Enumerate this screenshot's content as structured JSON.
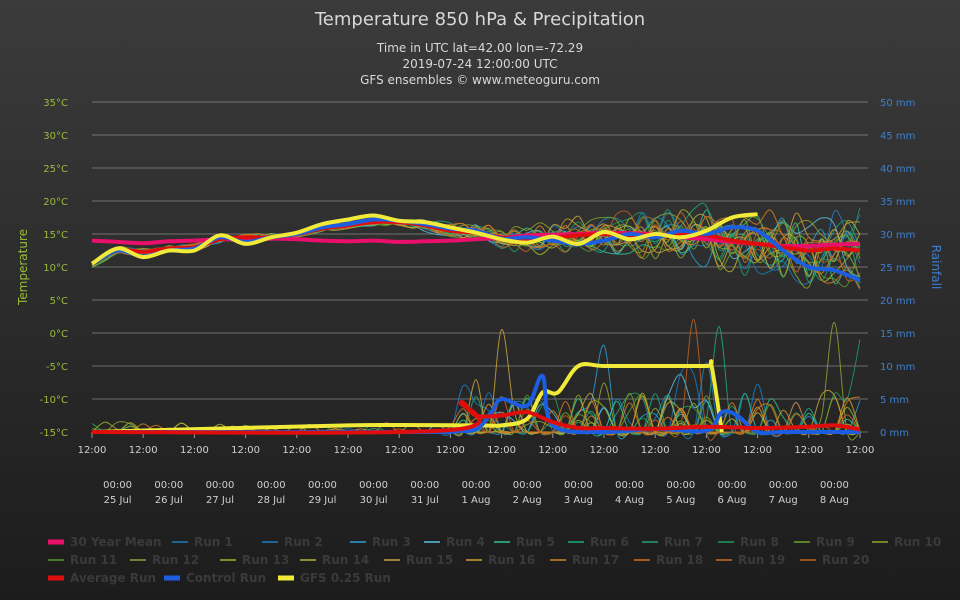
{
  "chart_data": {
    "type": "line",
    "title": "Temperature 850 hPa & Precipitation",
    "subtitle": [
      "Time in UTC lat=42.00 lon=-72.29",
      "2019-07-24 12:00:00 UTC",
      "GFS ensembles © www.meteoguru.com"
    ],
    "ylabel_left": "Temperature",
    "ylabel_right": "Rainfall",
    "ylim_left": [
      -15,
      35
    ],
    "ylim_right": [
      0,
      50
    ],
    "y_ticks_left": [
      "35°C",
      "30°C",
      "25°C",
      "20°C",
      "15°C",
      "10°C",
      "5°C",
      "0°C",
      "-5°C",
      "-10°C",
      "-15°C"
    ],
    "y_ticks_right": [
      "50 mm",
      "45 mm",
      "40 mm",
      "35 mm",
      "30 mm",
      "25 mm",
      "20 mm",
      "15 mm",
      "10 mm",
      "5 mm",
      "0 mm"
    ],
    "x_ticks_top": [
      "12:00",
      "12:00",
      "12:00",
      "12:00",
      "12:00",
      "12:00",
      "12:00",
      "12:00",
      "12:00",
      "12:00",
      "12:00",
      "12:00",
      "12:00",
      "12:00",
      "12:00",
      "12:00"
    ],
    "x_ticks_mid": [
      "00:00",
      "00:00",
      "00:00",
      "00:00",
      "00:00",
      "00:00",
      "00:00",
      "00:00",
      "00:00",
      "00:00",
      "00:00",
      "00:00",
      "00:00",
      "00:00",
      "00:00"
    ],
    "x_ticks_dates": [
      "25 Jul",
      "26 Jul",
      "27 Jul",
      "28 Jul",
      "29 Jul",
      "30 Jul",
      "31 Jul",
      "1 Aug",
      "2 Aug",
      "3 Aug",
      "4 Aug",
      "5 Aug",
      "6 Aug",
      "7 Aug",
      "8 Aug"
    ],
    "x_range_days": [
      0,
      15
    ],
    "grid": true,
    "legend_position": "bottom",
    "colors": {
      "mean30": "#e8106c",
      "control": "#1d5ee0",
      "gfs": "#f2ea38",
      "average": "#e00d0d",
      "temp_axis": "#9bbb38",
      "rain_axis": "#3d7fcf"
    },
    "legend": [
      {
        "name": "30 Year Mean",
        "color": "#e8106c",
        "thick": true
      },
      {
        "name": "Run 1",
        "color": "#1a7cbf"
      },
      {
        "name": "Run 2",
        "color": "#1f7fc2"
      },
      {
        "name": "Run 3",
        "color": "#29a0d6"
      },
      {
        "name": "Run 4",
        "color": "#5ec0e3"
      },
      {
        "name": "Run 5",
        "color": "#2fc48f"
      },
      {
        "name": "Run 6",
        "color": "#1ea886"
      },
      {
        "name": "Run 7",
        "color": "#27a06e"
      },
      {
        "name": "Run 8",
        "color": "#219b5c"
      },
      {
        "name": "Run 9",
        "color": "#6fa428"
      },
      {
        "name": "Run 10",
        "color": "#8ea62a"
      },
      {
        "name": "Run 11",
        "color": "#5a9a2c"
      },
      {
        "name": "Run 12",
        "color": "#8aa733"
      },
      {
        "name": "Run 13",
        "color": "#9fb52c"
      },
      {
        "name": "Run 14",
        "color": "#b5b43a"
      },
      {
        "name": "Run 15",
        "color": "#c9a43a"
      },
      {
        "name": "Run 16",
        "color": "#d49a2e"
      },
      {
        "name": "Run 17",
        "color": "#d9801f"
      },
      {
        "name": "Run 18",
        "color": "#d67321"
      },
      {
        "name": "Run 19",
        "color": "#c96a23"
      },
      {
        "name": "Run 20",
        "color": "#c0601f"
      },
      {
        "name": "Average Run",
        "color": "#e00d0d",
        "thick": true
      },
      {
        "name": "Control Run",
        "color": "#1d5ee0",
        "thick": true
      },
      {
        "name": "GFS 0.25 Run",
        "color": "#f2ea38",
        "thick": true
      }
    ],
    "series_temp": [
      {
        "name": "30 Year Mean",
        "x": [
          0,
          0.5,
          1,
          1.5,
          2,
          2.5,
          3,
          3.5,
          4,
          4.5,
          5,
          5.5,
          6,
          6.5,
          7,
          7.5,
          8,
          8.5,
          9,
          9.5,
          10,
          10.5,
          11,
          11.5,
          12,
          12.5,
          13,
          13.5,
          14,
          14.5,
          15
        ],
        "y": [
          14,
          13.8,
          13.6,
          13.9,
          14,
          14.2,
          14.1,
          14.3,
          14.2,
          14,
          13.9,
          14,
          13.8,
          13.9,
          14,
          14.2,
          14.4,
          14.8,
          14.9,
          15,
          15.2,
          15.1,
          15,
          14.5,
          14.2,
          13.8,
          13.5,
          13.2,
          13.2,
          13.4,
          13.5
        ]
      },
      {
        "name": "Average Run",
        "x": [
          0,
          0.5,
          1,
          1.5,
          2,
          2.5,
          3,
          3.5,
          4,
          4.5,
          5,
          5.5,
          6,
          6.5,
          7,
          7.5,
          8,
          8.5,
          9,
          9.5,
          10,
          10.5,
          11,
          11.5,
          12,
          12.5,
          13,
          13.5,
          14,
          14.5,
          15
        ],
        "y": [
          10.5,
          12.5,
          12.3,
          12.8,
          13,
          14.2,
          14.5,
          14.5,
          15,
          15.8,
          16.3,
          16.8,
          16.8,
          16.3,
          15.5,
          15.2,
          14.5,
          14.2,
          14.4,
          14.8,
          15,
          14.8,
          14.9,
          14.9,
          14.8,
          14,
          13.5,
          13,
          12.5,
          12.8,
          12.5
        ]
      },
      {
        "name": "Control Run",
        "x": [
          0,
          0.5,
          1,
          1.5,
          2,
          2.5,
          3,
          3.5,
          4,
          4.5,
          5,
          5.5,
          6,
          6.5,
          7,
          7.5,
          8,
          8.5,
          9,
          9.5,
          10,
          10.5,
          11,
          11.5,
          12,
          12.5,
          13,
          13.5,
          14,
          14.5,
          15
        ],
        "y": [
          10.5,
          12.5,
          11.6,
          12.5,
          12.8,
          14.5,
          13.8,
          14.5,
          15,
          16,
          16.5,
          17.2,
          17,
          16.5,
          15.8,
          15.5,
          14.3,
          14.5,
          14,
          13.5,
          14,
          15,
          14.5,
          15.5,
          15,
          16,
          15.5,
          12.5,
          10,
          9.5,
          8
        ]
      },
      {
        "name": "GFS 0.25 Run",
        "x": [
          0,
          0.5,
          1,
          1.5,
          2,
          2.5,
          3,
          3.5,
          4,
          4.5,
          5,
          5.5,
          6,
          6.5,
          7,
          7.5,
          8,
          8.5,
          9,
          9.5,
          10,
          10.5,
          11,
          11.5,
          12,
          12.5,
          13
        ],
        "y": [
          10.5,
          12.8,
          11.5,
          12.5,
          12.5,
          14.8,
          13.5,
          14.5,
          15.2,
          16.5,
          17.2,
          17.8,
          17,
          16.8,
          16,
          15.2,
          14.2,
          13.7,
          14.6,
          13.5,
          15.3,
          14.2,
          15,
          14.5,
          15.5,
          17.5,
          18
        ]
      }
    ],
    "series_rain": [
      {
        "name": "GFS 0.25 Run",
        "x": [
          0,
          5,
          7.5,
          8,
          8.5,
          8.8,
          9.1,
          9.5,
          10,
          11,
          12,
          12.1,
          12.3
        ],
        "y": [
          0,
          1,
          1,
          1,
          2,
          6,
          6,
          10,
          10,
          10,
          10,
          10,
          0
        ]
      },
      {
        "name": "Control Run",
        "x": [
          0,
          6.5,
          7,
          7.5,
          7.8,
          8,
          8.5,
          8.8,
          9,
          10,
          11,
          12,
          12.3,
          12.6,
          13,
          13.5,
          15
        ],
        "y": [
          0,
          0,
          0.2,
          0.4,
          3,
          5,
          4,
          8.5,
          1,
          0,
          0.5,
          0.2,
          3,
          2.5,
          0,
          0,
          0
        ]
      },
      {
        "name": "Average Run",
        "x": [
          0,
          7,
          7.2,
          7.5,
          8,
          8.5,
          9,
          9.5,
          10,
          11,
          12,
          13,
          14,
          14.5,
          15
        ],
        "y": [
          0,
          0.3,
          4.5,
          2.5,
          2.5,
          3,
          1.5,
          0.6,
          0.6,
          0.5,
          0.8,
          0.6,
          0.8,
          1,
          0.4
        ]
      }
    ]
  }
}
